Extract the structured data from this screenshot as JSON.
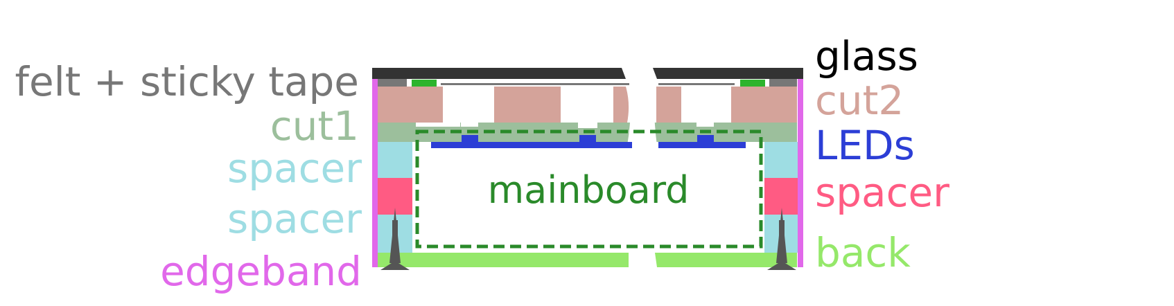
{
  "labels": {
    "left": {
      "felt": "felt + sticky tape",
      "cut1": "cut1",
      "spacer_top": "spacer",
      "spacer_bottom": "spacer",
      "edgeband": "edgeband"
    },
    "right": {
      "glass": "glass",
      "cut2": "cut2",
      "leds": "LEDs",
      "spacer": "spacer",
      "back": "back"
    },
    "center": {
      "mainboard": "mainboard"
    }
  },
  "colors": {
    "glass": "#333333",
    "felt": "#777777",
    "green_pad": "#2db42d",
    "cut2": "#d4a39a",
    "cut1": "#9cbf9c",
    "leds": "#2c3ed6",
    "spacer_cyan": "#9edde3",
    "spacer_red": "#ff5b83",
    "edgeband": "#e168ea",
    "back": "#95e86a",
    "mainboard": "#2a8a2a",
    "screw": "#555555"
  }
}
